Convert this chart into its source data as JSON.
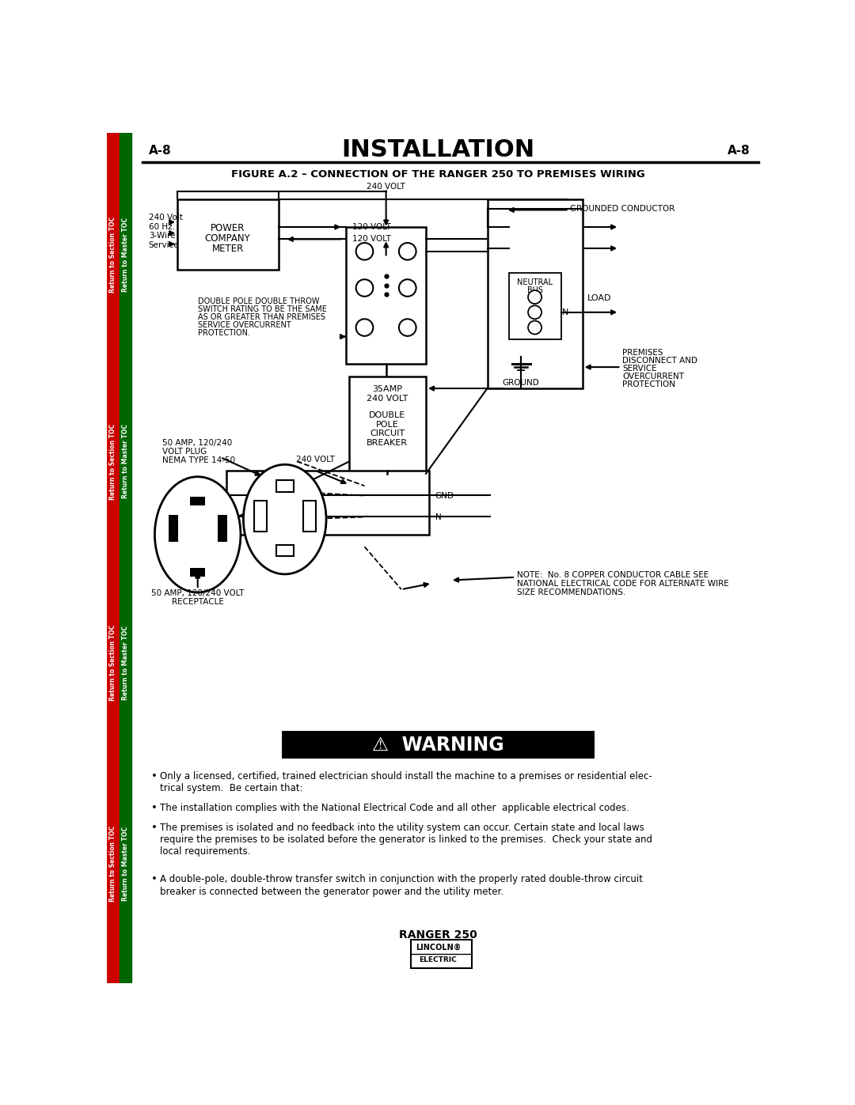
{
  "page_label_left": "A-8",
  "page_label_right": "A-8",
  "title": "INSTALLATION",
  "figure_title": "FIGURE A.2 – CONNECTION OF THE RANGER 250 TO PREMISES WIRING",
  "bg_color": "#ffffff",
  "sidebar_red_color": "#cc0000",
  "sidebar_green_color": "#006600",
  "sidebar_red_text": "Return to Section TOC",
  "sidebar_green_text": "Return to Master TOC",
  "warning_bg": "#000000",
  "warning_text": "⚠  WARNING",
  "warning_text_color": "#ffffff",
  "footer_text": "RANGER 250",
  "bullet1": "Only a licensed, certified, trained electrician should install the machine to a premises or residential elec-\ntrical system.  Be certain that:",
  "bullet2": "The installation complies with the National Electrical Code and all other  applicable electrical codes.",
  "bullet3": "The premises is isolated and no feedback into the utility system can occur. Certain state and local laws\nrequire the premises to be isolated before the generator is linked to the premises.  Check your state and\nlocal requirements.",
  "bullet4": "A double-pole, double-throw transfer switch in conjunction with the properly rated double-throw circuit\nbreaker is connected between the generator power and the utility meter."
}
